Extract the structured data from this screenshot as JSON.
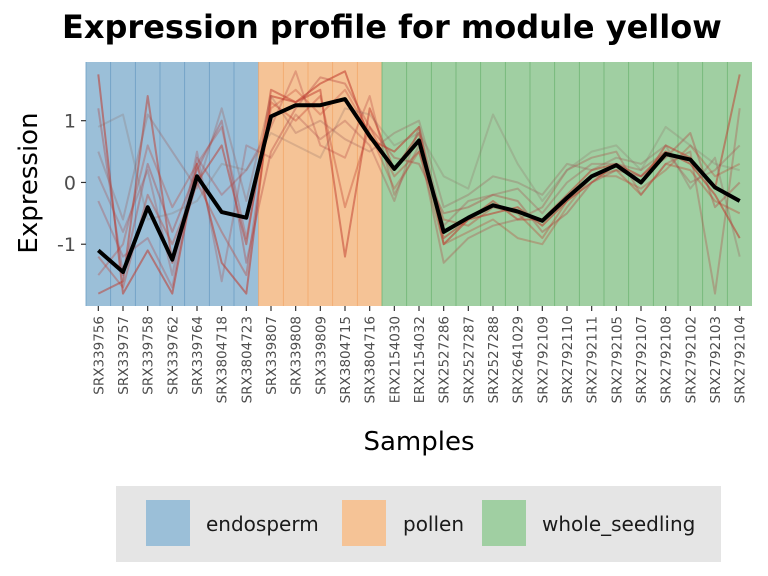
{
  "chart_data": {
    "type": "line",
    "title": "Expression profile for module yellow",
    "xlabel": "Samples",
    "ylabel": "Expression",
    "ylim": [
      -2.0,
      1.95
    ],
    "yticks": [
      -1,
      0,
      1
    ],
    "categories": [
      "SRX339756",
      "SRX339757",
      "SRX339758",
      "SRX339762",
      "SRX339764",
      "SRX3804718",
      "SRX3804723",
      "SRX339807",
      "SRX339808",
      "SRX339809",
      "SRX3804715",
      "SRX3804716",
      "ERX2154030",
      "ERX2154032",
      "SRX2527286",
      "SRX2527287",
      "SRX2527288",
      "SRX2641029",
      "SRX2792109",
      "SRX2792110",
      "SRX2792111",
      "SRX2792105",
      "SRX2792107",
      "SRX2792108",
      "SRX2792102",
      "SRX2792103",
      "SRX2792104"
    ],
    "groups": [
      {
        "name": "endosperm",
        "start": 0,
        "end": 6,
        "color": "#9bbfd8"
      },
      {
        "name": "pollen",
        "start": 7,
        "end": 11,
        "color": "#f5c396"
      },
      {
        "name": "whole_seedling",
        "start": 12,
        "end": 26,
        "color": "#a0cfa2"
      }
    ],
    "series": [
      {
        "values": [
          -1.1,
          -1.45,
          -0.4,
          -1.25,
          0.1,
          -0.48,
          -0.57,
          1.07,
          1.25,
          1.25,
          1.35,
          0.75,
          0.22,
          0.68,
          -0.8,
          -0.57,
          -0.37,
          -0.47,
          -0.62,
          -0.25,
          0.1,
          0.28,
          0.0,
          0.46,
          0.37,
          -0.08,
          -0.3
        ],
        "color": "#000000",
        "width": 4,
        "opacity": 1
      },
      {
        "values": [
          1.75,
          -1.8,
          -1.1,
          -1.8,
          0.3,
          -1.3,
          -1.8,
          1.4,
          1.3,
          1.6,
          1.8,
          0.7,
          0.5,
          0.9,
          -1.0,
          -0.6,
          -0.5,
          -0.4,
          -0.7,
          -0.3,
          0.0,
          0.3,
          0.1,
          0.5,
          0.3,
          -0.2,
          -0.9
        ],
        "color": "#c0392b",
        "width": 2,
        "opacity": 0.55
      },
      {
        "values": [
          -1.8,
          -1.6,
          1.4,
          -1.3,
          0.0,
          0.6,
          -1.0,
          1.5,
          1.3,
          1.5,
          -1.2,
          1.2,
          0.2,
          0.8,
          -0.9,
          -0.6,
          -0.3,
          -0.6,
          -0.6,
          -0.2,
          0.2,
          0.3,
          0.0,
          0.6,
          0.4,
          -0.1,
          1.75
        ],
        "color": "#c0392b",
        "width": 2,
        "opacity": 0.5
      },
      {
        "values": [
          1.2,
          -1.5,
          0.3,
          -0.8,
          0.2,
          1.0,
          -1.3,
          0.5,
          1.2,
          1.7,
          1.6,
          0.9,
          0.4,
          0.3,
          -0.5,
          -0.4,
          -0.2,
          -0.3,
          -0.8,
          -0.5,
          0.0,
          0.2,
          0.1,
          0.4,
          0.8,
          -0.4,
          0.0
        ],
        "color": "#b23a3a",
        "width": 2,
        "opacity": 0.35
      },
      {
        "values": [
          -0.3,
          -1.2,
          -0.9,
          -1.7,
          0.4,
          -0.2,
          0.2,
          0.9,
          1.8,
          0.6,
          0.4,
          1.4,
          -0.2,
          0.6,
          -1.3,
          -0.9,
          -0.7,
          -0.6,
          -0.4,
          0.2,
          0.4,
          0.5,
          -0.2,
          0.3,
          0.5,
          -1.8,
          1.2
        ],
        "color": "#b23a3a",
        "width": 2,
        "opacity": 0.3
      },
      {
        "values": [
          0.5,
          -0.6,
          1.1,
          0.5,
          -0.1,
          1.2,
          -0.3,
          1.4,
          0.8,
          1.0,
          0.7,
          0.5,
          0.8,
          1.0,
          -0.4,
          -0.2,
          0.1,
          0.0,
          -0.2,
          0.3,
          0.2,
          0.4,
          0.3,
          0.6,
          -0.1,
          0.4,
          -1.2
        ],
        "color": "#9a5a55",
        "width": 2,
        "opacity": 0.3
      },
      {
        "values": [
          -1.5,
          -1.0,
          0.6,
          -0.4,
          0.3,
          0.9,
          -0.9,
          1.2,
          1.5,
          1.1,
          1.5,
          0.8,
          -0.1,
          0.5,
          -1.0,
          -0.8,
          -0.6,
          -0.9,
          -1.0,
          -0.4,
          0.1,
          0.1,
          -0.1,
          0.2,
          0.6,
          0.1,
          0.3
        ],
        "color": "#c0392b",
        "width": 2,
        "opacity": 0.3
      },
      {
        "values": [
          0.9,
          1.1,
          -0.6,
          -0.5,
          -0.3,
          0.3,
          0.2,
          0.8,
          0.6,
          0.4,
          1.2,
          1.1,
          0.6,
          0.8,
          0.1,
          -0.1,
          1.1,
          0.3,
          -0.3,
          0.2,
          0.5,
          0.6,
          0.2,
          0.9,
          0.6,
          0.3,
          0.2
        ],
        "color": "#8c6a65",
        "width": 2,
        "opacity": 0.25
      },
      {
        "values": [
          -1.2,
          -1.7,
          -0.2,
          -1.0,
          0.0,
          -0.8,
          -1.5,
          1.3,
          1.0,
          1.4,
          -0.4,
          0.9,
          0.1,
          0.5,
          -0.6,
          -0.7,
          -0.4,
          -0.5,
          -0.9,
          -0.3,
          0.1,
          0.2,
          -0.2,
          0.3,
          0.2,
          -0.3,
          -0.5
        ],
        "color": "#c0392b",
        "width": 2,
        "opacity": 0.35
      },
      {
        "values": [
          0.1,
          -0.8,
          0.2,
          -1.5,
          0.5,
          -1.6,
          0.6,
          0.4,
          1.1,
          0.7,
          1.0,
          0.6,
          -0.3,
          0.9,
          -0.7,
          -0.3,
          -0.2,
          -0.1,
          -0.5,
          0.0,
          0.3,
          0.3,
          0.2,
          0.5,
          0.0,
          0.2,
          0.6
        ],
        "color": "#a84848",
        "width": 2,
        "opacity": 0.3
      }
    ]
  },
  "legend": {
    "items": [
      {
        "label": "endosperm",
        "color": "#9bbfd8"
      },
      {
        "label": "pollen",
        "color": "#f5c396"
      },
      {
        "label": "whole_seedling",
        "color": "#a0cfa2"
      }
    ]
  }
}
